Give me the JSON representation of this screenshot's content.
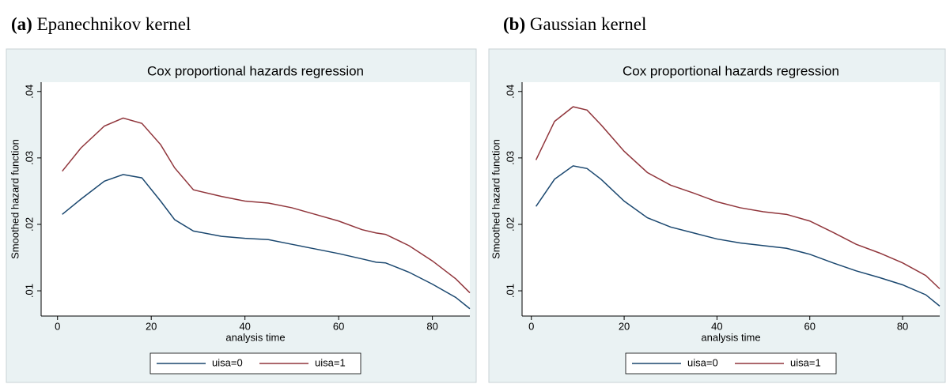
{
  "chart_data": [
    {
      "type": "line",
      "panel": "(a)",
      "caption": "Epanechnikov kernel",
      "title": "Cox proportional hazards regression",
      "xlabel": "analysis time",
      "ylabel": "Smoothed hazard function",
      "x": [
        1,
        5,
        10,
        14,
        18,
        22,
        25,
        29,
        35,
        40,
        45,
        50,
        55,
        60,
        65,
        68,
        70,
        75,
        80,
        85,
        88
      ],
      "series": [
        {
          "name": "uisa=0",
          "color": "#1a476f",
          "values": [
            0.0215,
            0.0238,
            0.0265,
            0.0275,
            0.027,
            0.0235,
            0.0207,
            0.019,
            0.0182,
            0.0179,
            0.0177,
            0.017,
            0.0163,
            0.0156,
            0.0148,
            0.0143,
            0.0142,
            0.0128,
            0.011,
            0.009,
            0.0073
          ]
        },
        {
          "name": "uisa=1",
          "color": "#90353b",
          "values": [
            0.028,
            0.0315,
            0.0348,
            0.036,
            0.0352,
            0.032,
            0.0285,
            0.0252,
            0.0242,
            0.0235,
            0.0232,
            0.0225,
            0.0215,
            0.0205,
            0.0192,
            0.0187,
            0.0185,
            0.0168,
            0.0145,
            0.0118,
            0.0097
          ]
        }
      ],
      "xlim": [
        -3.5,
        88
      ],
      "xticks": [
        0,
        20,
        40,
        60,
        80
      ],
      "ylim": [
        0.0062,
        0.0414
      ],
      "yticks": [
        {
          "value": 0.01,
          "label": ".01"
        },
        {
          "value": 0.02,
          "label": ".02"
        },
        {
          "value": 0.03,
          "label": ".03"
        },
        {
          "value": 0.04,
          "label": ".04"
        }
      ],
      "legend": "bottom"
    },
    {
      "type": "line",
      "panel": "(b)",
      "caption": "Gaussian kernel",
      "title": "Cox proportional hazards regression",
      "xlabel": "analysis time",
      "ylabel": "Smoothed hazard function",
      "x": [
        1,
        5,
        9,
        12,
        15,
        20,
        25,
        30,
        35,
        40,
        45,
        50,
        55,
        60,
        65,
        70,
        75,
        80,
        85,
        88
      ],
      "series": [
        {
          "name": "uisa=0",
          "color": "#1a476f",
          "values": [
            0.0227,
            0.0268,
            0.0288,
            0.0284,
            0.0268,
            0.0235,
            0.021,
            0.0196,
            0.0187,
            0.0178,
            0.0172,
            0.0168,
            0.0164,
            0.0155,
            0.0142,
            0.013,
            0.012,
            0.0109,
            0.0094,
            0.0077
          ]
        },
        {
          "name": "uisa=1",
          "color": "#90353b",
          "values": [
            0.0297,
            0.0355,
            0.0377,
            0.0372,
            0.035,
            0.031,
            0.0278,
            0.0259,
            0.0247,
            0.0234,
            0.0225,
            0.0219,
            0.0215,
            0.0205,
            0.0188,
            0.017,
            0.0157,
            0.0142,
            0.0123,
            0.0103
          ]
        }
      ],
      "xlim": [
        -2,
        88
      ],
      "xticks": [
        0,
        20,
        40,
        60,
        80
      ],
      "ylim": [
        0.0062,
        0.0414
      ],
      "yticks": [
        {
          "value": 0.01,
          "label": ".01"
        },
        {
          "value": 0.02,
          "label": ".02"
        },
        {
          "value": 0.03,
          "label": ".03"
        },
        {
          "value": 0.04,
          "label": ".04"
        }
      ],
      "legend": "bottom"
    }
  ]
}
